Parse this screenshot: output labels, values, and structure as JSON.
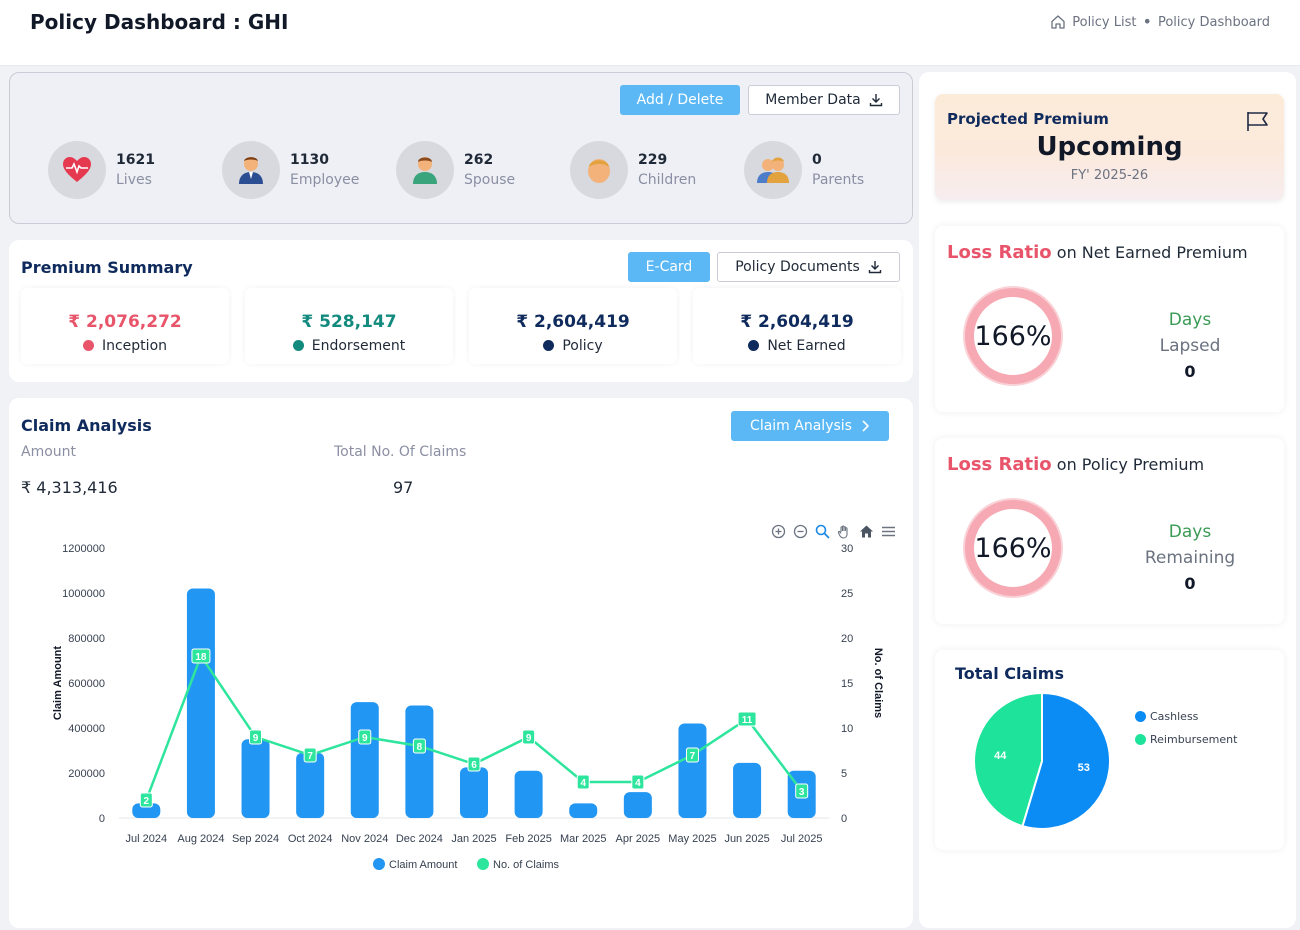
{
  "header": {
    "title": "Policy Dashboard : GHI",
    "breadcrumb": [
      "Policy List",
      "Policy Dashboard"
    ]
  },
  "members": {
    "buttons": {
      "add_delete": "Add / Delete",
      "member_data": "Member Data"
    },
    "stats": [
      {
        "value": "1621",
        "label": "Lives",
        "icon": "heartbeat-icon"
      },
      {
        "value": "1130",
        "label": "Employee",
        "icon": "employee-icon"
      },
      {
        "value": "262",
        "label": "Spouse",
        "icon": "spouse-icon"
      },
      {
        "value": "229",
        "label": "Children",
        "icon": "child-icon"
      },
      {
        "value": "0",
        "label": "Parents",
        "icon": "parents-icon"
      }
    ]
  },
  "premium": {
    "title": "Premium Summary",
    "buttons": {
      "ecard": "E-Card",
      "policy_documents": "Policy Documents"
    },
    "items": [
      {
        "value": "₹ 2,076,272",
        "label": "Inception",
        "color": "#e8556b"
      },
      {
        "value": "₹ 528,147",
        "label": "Endorsement",
        "color": "#138a7e"
      },
      {
        "value": "₹ 2,604,419",
        "label": "Policy",
        "color": "#0f2a5c"
      },
      {
        "value": "₹ 2,604,419",
        "label": "Net Earned",
        "color": "#0f2a5c"
      }
    ]
  },
  "claims": {
    "title": "Claim Analysis",
    "button": "Claim Analysis",
    "amount_label": "Amount",
    "count_label": "Total No. Of Claims",
    "amount_value": "₹ 4,313,416",
    "count_value": "97"
  },
  "chart_data": {
    "type": "bar",
    "categories": [
      "Jul 2024",
      "Aug 2024",
      "Sep 2024",
      "Oct 2024",
      "Nov 2024",
      "Dec 2024",
      "Jan 2025",
      "Feb 2025",
      "Mar 2025",
      "Apr 2025",
      "May 2025",
      "Jun 2025",
      "Jul 2025"
    ],
    "series": [
      {
        "name": "Claim Amount",
        "type": "bar",
        "axis": "left",
        "color": "#2196f3",
        "values": [
          65000,
          1020000,
          350000,
          290000,
          515000,
          500000,
          225000,
          210000,
          65000,
          115000,
          420000,
          245000,
          210000
        ]
      },
      {
        "name": "No. of Claims",
        "type": "line",
        "axis": "right",
        "color": "#2ee59d",
        "values": [
          2,
          18,
          9,
          7,
          9,
          8,
          6,
          9,
          4,
          4,
          7,
          11,
          3
        ]
      }
    ],
    "ylabel": "Claim Amount",
    "y2label": "No. of Claims",
    "ylim": [
      0,
      1200000
    ],
    "y2lim": [
      0,
      30
    ],
    "yticks": [
      0,
      200000,
      400000,
      600000,
      800000,
      1000000,
      1200000
    ],
    "y2ticks": [
      0,
      5,
      10,
      15,
      20,
      25,
      30
    ],
    "legend": "bottom"
  },
  "projected": {
    "title": "Projected Premium",
    "status": "Upcoming",
    "fy": "FY' 2025-26"
  },
  "loss_ratio_earned": {
    "accent": "Loss Ratio",
    "title_rest": "on Net Earned Premium",
    "value": "166%",
    "days_label": "Days",
    "days_sub": "Lapsed",
    "days_value": "0"
  },
  "loss_ratio_policy": {
    "accent": "Loss Ratio",
    "title_rest": "on Policy Premium",
    "value": "166%",
    "days_label": "Days",
    "days_sub": "Remaining",
    "days_value": "0"
  },
  "total_claims": {
    "title": "Total Claims",
    "slices": [
      {
        "name": "Cashless",
        "value": 53,
        "color": "#0b8cf5"
      },
      {
        "name": "Reimbursement",
        "value": 44,
        "color": "#1ee39a"
      }
    ]
  }
}
